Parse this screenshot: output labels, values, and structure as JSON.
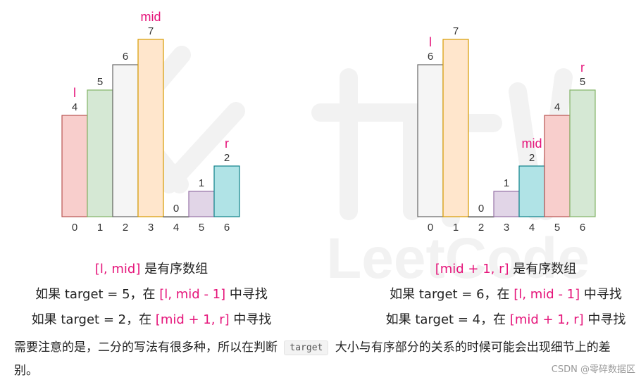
{
  "chart_data": [
    {
      "type": "bar",
      "categories": [
        "0",
        "1",
        "2",
        "3",
        "4",
        "5",
        "6"
      ],
      "values": [
        4,
        5,
        6,
        7,
        0,
        1,
        2
      ],
      "colors": [
        "#f8cecc",
        "#d5e8d4",
        "#f5f5f5",
        "#ffe6cc",
        "#ffffff",
        "#e1d5e7",
        "#b0e3e6"
      ],
      "strokes": [
        "#b85450",
        "#82b366",
        "#666666",
        "#d79b00",
        "#666666",
        "#9673a6",
        "#0e8088"
      ],
      "pointers": [
        {
          "label": "l",
          "index": 0
        },
        {
          "label": "mid",
          "index": 3
        },
        {
          "label": "r",
          "index": 6
        }
      ]
    },
    {
      "type": "bar",
      "categories": [
        "0",
        "1",
        "2",
        "3",
        "4",
        "5",
        "6"
      ],
      "values": [
        6,
        7,
        0,
        1,
        2,
        4,
        5
      ],
      "colors": [
        "#f5f5f5",
        "#ffe6cc",
        "#ffffff",
        "#e1d5e7",
        "#b0e3e6",
        "#f8cecc",
        "#d5e8d4"
      ],
      "strokes": [
        "#666666",
        "#d79b00",
        "#666666",
        "#9673a6",
        "#0e8088",
        "#b85450",
        "#82b366"
      ],
      "pointers": [
        {
          "label": "l",
          "index": 0
        },
        {
          "label": "mid",
          "index": 4
        },
        {
          "label": "r",
          "index": 6
        }
      ]
    }
  ],
  "captions": {
    "left": {
      "line1": {
        "range": "[l, mid]",
        "text": " 是有序数组"
      },
      "line2": {
        "pre": "如果 target = 5，在 ",
        "range": "[l, mid - 1]",
        "post": " 中寻找"
      },
      "line3": {
        "pre": "如果 target = 2，在 ",
        "range": "[mid + 1, r]",
        "post": " 中寻找"
      }
    },
    "right": {
      "line1": {
        "range": "[mid + 1, r]",
        "text": " 是有序数组"
      },
      "line2": {
        "pre": "如果 target = 6，在 ",
        "range": "[l, mid - 1]",
        "post": " 中寻找"
      },
      "line3": {
        "pre": "如果 target = 4，在 ",
        "range": "[mid + 1, r]",
        "post": " 中寻找"
      }
    }
  },
  "paragraph": {
    "before": "需要注意的是，二分的写法有很多种，所以在判断 ",
    "code": "target",
    "after": " 大小与有序部分的关系的时候可能会出现细节上的差别。"
  },
  "watermark": {
    "text": "LeetCode",
    "credit": "CSDN @零碎数据区"
  },
  "colors": {
    "pointer": "#e5147a",
    "text": "#222222",
    "watermark": "#f1f1f1"
  }
}
